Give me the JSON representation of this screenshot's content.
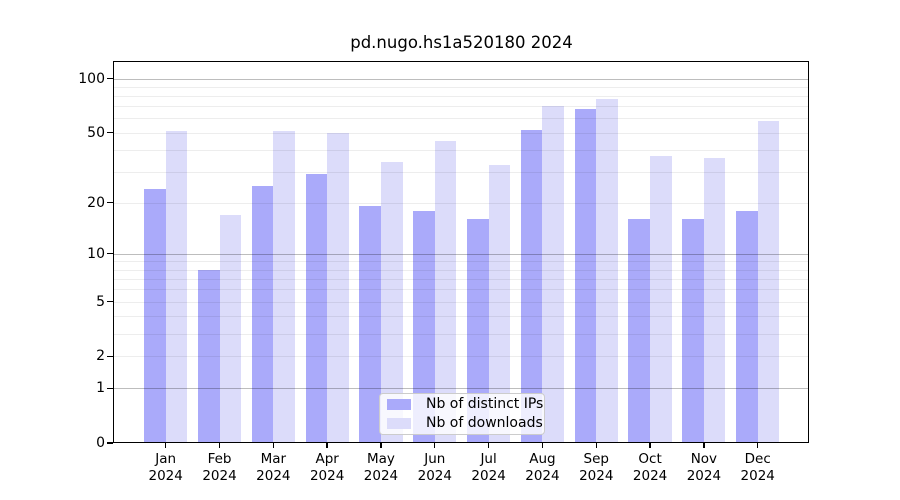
{
  "header": {
    "title": "pd.nugo.hs1a520180 2024"
  },
  "chart_data": {
    "type": "bar",
    "title": "pd.nugo.hs1a520180 2024",
    "categories": [
      "Jan",
      "Feb",
      "Mar",
      "Apr",
      "May",
      "Jun",
      "Jul",
      "Aug",
      "Sep",
      "Oct",
      "Nov",
      "Dec"
    ],
    "x_sublabel_year": "2024",
    "series": [
      {
        "name": "Nb of distinct IPs",
        "color": "#AAAAFA",
        "values": [
          24,
          8,
          25,
          29,
          19,
          18,
          16,
          52,
          68,
          16,
          16,
          18
        ]
      },
      {
        "name": "Nb of downloads",
        "color": "#DCDCFA",
        "values": [
          51,
          17,
          51,
          50,
          34,
          45,
          33,
          70,
          77,
          37,
          36,
          58
        ]
      }
    ],
    "y_ticks": [
      0,
      1,
      2,
      5,
      10,
      20,
      50,
      100
    ],
    "y_major_gridlines": [
      1,
      10,
      100
    ],
    "y_minor_gridlines": [
      2,
      3,
      4,
      5,
      6,
      7,
      8,
      9,
      20,
      30,
      40,
      50,
      60,
      70,
      80,
      90
    ],
    "y_scale": "log10(1+v), 0 at baseline",
    "ylim": [
      0,
      126
    ],
    "xlabel": "",
    "ylabel": "",
    "grid": "horizontal only",
    "legend_position": "inside axes, bottom center"
  }
}
